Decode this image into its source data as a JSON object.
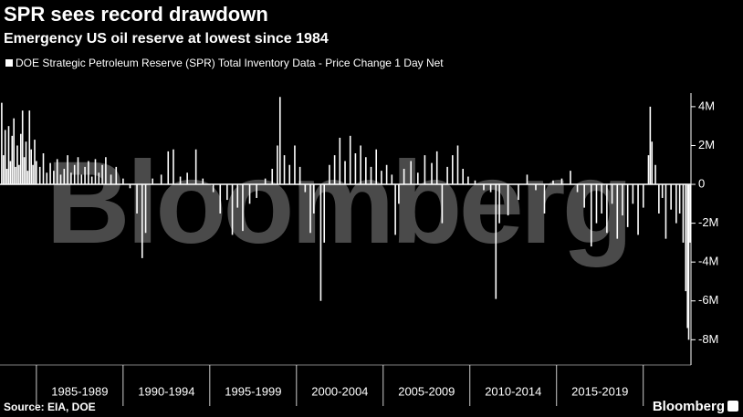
{
  "chart_data": {
    "type": "spike",
    "title": "SPR sees record drawdown",
    "subtitle": "Emergency US oil reserve at lowest since 1984",
    "watermark": "Bloomberg",
    "source": "Source: EIA, DOE",
    "brand": "Bloomberg",
    "series": [
      {
        "name": "DOE Strategic Petroleum Reserve (SPR) Total Inventory Data - Price Change 1 Day Net",
        "color": "#ffffff",
        "x": [
          1983.0,
          1983.1,
          1983.2,
          1983.3,
          1983.4,
          1983.5,
          1983.6,
          1983.7,
          1983.8,
          1983.9,
          1984.0,
          1984.1,
          1984.2,
          1984.3,
          1984.4,
          1984.5,
          1984.6,
          1984.7,
          1984.8,
          1984.9,
          1985.0,
          1985.2,
          1985.4,
          1985.6,
          1985.8,
          1986.0,
          1986.2,
          1986.4,
          1986.6,
          1986.8,
          1987.0,
          1987.2,
          1987.4,
          1987.6,
          1987.8,
          1988.0,
          1988.2,
          1988.4,
          1988.6,
          1988.8,
          1989.0,
          1989.3,
          1989.6,
          1990.0,
          1990.4,
          1990.8,
          1991.1,
          1991.3,
          1991.7,
          1992.2,
          1992.6,
          1992.9,
          1993.3,
          1993.7,
          1994.2,
          1994.6,
          1995.2,
          1995.6,
          1996.0,
          1996.3,
          1996.6,
          1996.9,
          1997.3,
          1997.7,
          1998.2,
          1998.6,
          1998.9,
          1999.05,
          1999.3,
          1999.6,
          1999.9,
          2000.2,
          2000.5,
          2000.8,
          2001.0,
          2001.4,
          2001.6,
          2001.9,
          2002.2,
          2002.5,
          2002.8,
          2003.1,
          2003.4,
          2003.7,
          2004.0,
          2004.3,
          2004.6,
          2004.9,
          2005.2,
          2005.5,
          2005.7,
          2005.9,
          2006.2,
          2006.6,
          2007.0,
          2007.4,
          2007.8,
          2008.1,
          2008.4,
          2008.7,
          2009.0,
          2009.3,
          2009.6,
          2009.9,
          2010.3,
          2010.8,
          2011.2,
          2011.5,
          2011.7,
          2012.2,
          2012.8,
          2013.3,
          2013.8,
          2014.3,
          2014.8,
          2015.3,
          2015.8,
          2016.2,
          2016.6,
          2017.0,
          2017.3,
          2017.6,
          2017.9,
          2018.2,
          2018.5,
          2018.8,
          2019.1,
          2019.4,
          2019.7,
          2020.0,
          2020.3,
          2020.4,
          2020.5,
          2020.7,
          2020.9,
          2021.1,
          2021.3,
          2021.6,
          2021.9,
          2022.1,
          2022.3,
          2022.45,
          2022.55,
          2022.62,
          2022.7
        ],
        "values": [
          4200000,
          1500000,
          2800000,
          800000,
          3000000,
          1200000,
          2500000,
          3400000,
          900000,
          2000000,
          1000000,
          2600000,
          3800000,
          1400000,
          2200000,
          700000,
          3800000,
          1800000,
          1000000,
          2300000,
          1200000,
          900000,
          1600000,
          600000,
          1100000,
          700000,
          1300000,
          500000,
          800000,
          1500000,
          600000,
          1000000,
          1400000,
          500000,
          900000,
          1200000,
          400000,
          1300000,
          600000,
          1000000,
          1400000,
          500000,
          900000,
          300000,
          -200000,
          -1500000,
          -3800000,
          -2500000,
          300000,
          500000,
          1700000,
          1800000,
          400000,
          600000,
          1800000,
          300000,
          -400000,
          -1500000,
          -800000,
          -2600000,
          -1200000,
          -2400000,
          -1000000,
          -700000,
          300000,
          800000,
          2000000,
          4500000,
          1500000,
          1000000,
          2000000,
          900000,
          -400000,
          -2500000,
          -1500000,
          -6000000,
          -3000000,
          1000000,
          1500000,
          2400000,
          1200000,
          2500000,
          1600000,
          2000000,
          1400000,
          900000,
          1800000,
          700000,
          1000000,
          500000,
          -2600000,
          -1000000,
          800000,
          1200000,
          600000,
          1500000,
          1100000,
          1700000,
          -2000000,
          900000,
          1500000,
          2000000,
          800000,
          400000,
          200000,
          -300000,
          -400000,
          -5900000,
          -2000000,
          -1600000,
          -800000,
          500000,
          -300000,
          -1500000,
          200000,
          300000,
          700000,
          -400000,
          -1200000,
          -3200000,
          -2000000,
          -1500000,
          -2500000,
          -1000000,
          -2800000,
          -1600000,
          -2200000,
          -1000000,
          -2600000,
          -1200000,
          1500000,
          4000000,
          2200000,
          1000000,
          -1500000,
          -700000,
          -2800000,
          -1300000,
          -2000000,
          -1500000,
          -3000000,
          -5500000,
          -7400000,
          -8000000,
          -3000000
        ]
      }
    ],
    "xlim": [
      1982.9,
      2022.75
    ],
    "xticks": [
      1985,
      1990,
      1995,
      2000,
      2005,
      2010,
      2015,
      2020
    ],
    "x_periods": [
      "1985-1989",
      "1990-1994",
      "1995-1999",
      "2000-2004",
      "2005-2009",
      "2010-2014",
      "2015-2019"
    ],
    "ylim": [
      -9300000,
      4700000
    ],
    "yticks": [
      {
        "value": 4000000,
        "label": "4M"
      },
      {
        "value": 2000000,
        "label": "2M"
      },
      0,
      {
        "value": -2000000,
        "label": "-2M"
      },
      {
        "value": -4000000,
        "label": "-4M"
      },
      {
        "value": -6000000,
        "label": "-6M"
      },
      {
        "value": -8000000,
        "label": "-8M"
      }
    ],
    "background": "#000000"
  }
}
